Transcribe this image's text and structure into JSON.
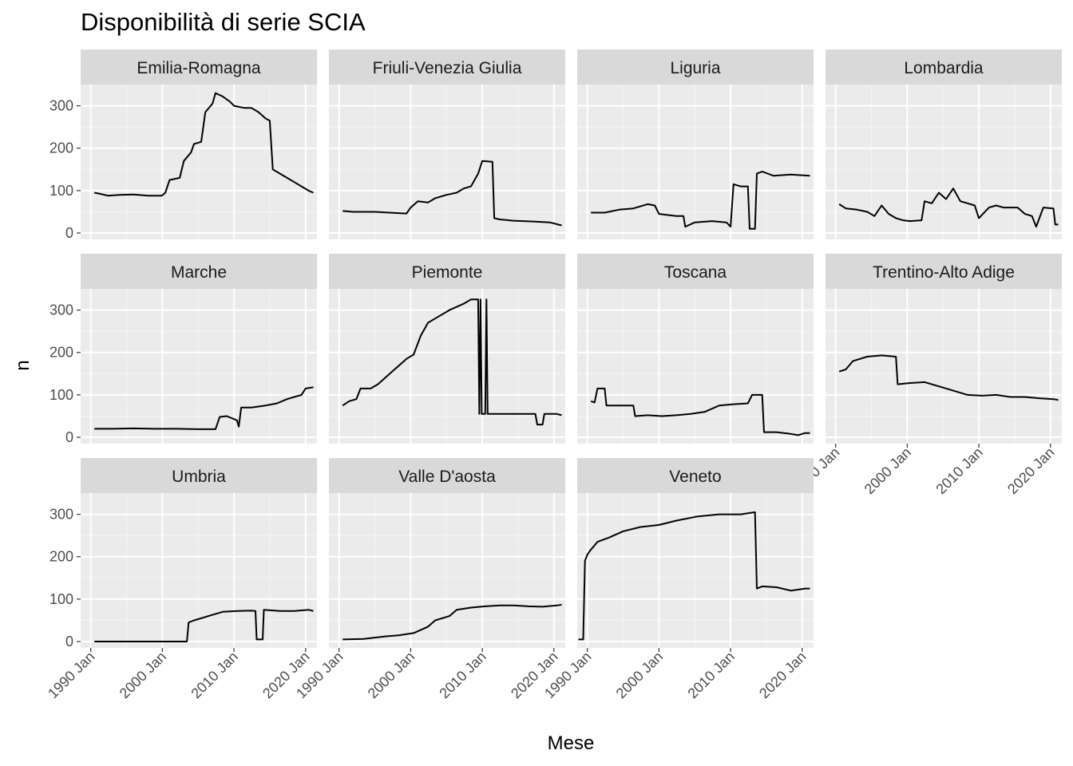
{
  "chart_data": {
    "type": "line",
    "title": "Disponibilità di serie SCIA",
    "xlabel": "Mese",
    "ylabel": "n",
    "facet_layout": "wrap, 4 columns",
    "x_ticks": [
      "1990 Jan",
      "2000 Jan",
      "2010 Jan",
      "2020 Jan"
    ],
    "y_ticks": [
      0,
      100,
      200,
      300
    ],
    "xlim": [
      "1988-08",
      "2021-08"
    ],
    "ylim": [
      -15,
      350
    ],
    "grid": true,
    "line_color": "#000000",
    "panel_background": "#EBEBEB",
    "strip_background": "#D9D9D9",
    "series": [
      {
        "name": "Emilia-Romagna",
        "points": [
          [
            "1990-07",
            95
          ],
          [
            "1991-06",
            92
          ],
          [
            "1992-06",
            88
          ],
          [
            "1994-01",
            90
          ],
          [
            "1996-01",
            91
          ],
          [
            "1998-01",
            88
          ],
          [
            "1999-12",
            88
          ],
          [
            "2000-06",
            95
          ],
          [
            "2001-01",
            125
          ],
          [
            "2002-06",
            130
          ],
          [
            "2003-01",
            170
          ],
          [
            "2004-01",
            190
          ],
          [
            "2004-06",
            210
          ],
          [
            "2005-06",
            215
          ],
          [
            "2006-01",
            285
          ],
          [
            "2007-01",
            305
          ],
          [
            "2007-06",
            330
          ],
          [
            "2008-06",
            322
          ],
          [
            "2009-06",
            310
          ],
          [
            "2010-01",
            300
          ],
          [
            "2011-06",
            295
          ],
          [
            "2012-06",
            295
          ],
          [
            "2013-06",
            285
          ],
          [
            "2014-06",
            270
          ],
          [
            "2015-01",
            265
          ],
          [
            "2015-06",
            150
          ],
          [
            "2016-06",
            140
          ],
          [
            "2017-06",
            130
          ],
          [
            "2018-06",
            120
          ],
          [
            "2019-06",
            110
          ],
          [
            "2020-06",
            100
          ],
          [
            "2021-02",
            95
          ]
        ]
      },
      {
        "name": "Friuli-Venezia Giulia",
        "points": [
          [
            "1990-07",
            52
          ],
          [
            "1992-01",
            50
          ],
          [
            "1995-01",
            50
          ],
          [
            "1997-01",
            48
          ],
          [
            "1999-06",
            46
          ],
          [
            "2000-01",
            60
          ],
          [
            "2001-01",
            75
          ],
          [
            "2002-06",
            72
          ],
          [
            "2003-06",
            82
          ],
          [
            "2005-01",
            90
          ],
          [
            "2006-06",
            95
          ],
          [
            "2007-06",
            105
          ],
          [
            "2008-06",
            110
          ],
          [
            "2009-06",
            140
          ],
          [
            "2010-01",
            170
          ],
          [
            "2011-06",
            168
          ],
          [
            "2011-09",
            35
          ],
          [
            "2012-06",
            32
          ],
          [
            "2014-06",
            29
          ],
          [
            "2017-06",
            27
          ],
          [
            "2019-06",
            25
          ],
          [
            "2021-02",
            18
          ]
        ]
      },
      {
        "name": "Liguria",
        "points": [
          [
            "1990-07",
            48
          ],
          [
            "1992-06",
            48
          ],
          [
            "1994-06",
            55
          ],
          [
            "1996-06",
            58
          ],
          [
            "1998-06",
            68
          ],
          [
            "1999-06",
            65
          ],
          [
            "2000-01",
            45
          ],
          [
            "2002-06",
            40
          ],
          [
            "2003-06",
            40
          ],
          [
            "2003-09",
            15
          ],
          [
            "2005-01",
            25
          ],
          [
            "2007-06",
            28
          ],
          [
            "2009-06",
            25
          ],
          [
            "2010-01",
            15
          ],
          [
            "2010-06",
            115
          ],
          [
            "2011-06",
            110
          ],
          [
            "2012-06",
            110
          ],
          [
            "2012-09",
            10
          ],
          [
            "2013-06",
            10
          ],
          [
            "2013-09",
            140
          ],
          [
            "2014-06",
            145
          ],
          [
            "2016-01",
            135
          ],
          [
            "2018-06",
            138
          ],
          [
            "2021-02",
            135
          ]
        ]
      },
      {
        "name": "Lombardia",
        "points": [
          [
            "1990-07",
            68
          ],
          [
            "1991-06",
            58
          ],
          [
            "1993-01",
            55
          ],
          [
            "1994-06",
            50
          ],
          [
            "1995-06",
            40
          ],
          [
            "1996-06",
            65
          ],
          [
            "1997-06",
            45
          ],
          [
            "1998-06",
            35
          ],
          [
            "1999-06",
            30
          ],
          [
            "2000-06",
            28
          ],
          [
            "2002-01",
            30
          ],
          [
            "2002-06",
            75
          ],
          [
            "2003-06",
            70
          ],
          [
            "2004-06",
            95
          ],
          [
            "2005-06",
            80
          ],
          [
            "2006-06",
            105
          ],
          [
            "2007-06",
            75
          ],
          [
            "2008-06",
            70
          ],
          [
            "2009-06",
            65
          ],
          [
            "2010-01",
            35
          ],
          [
            "2011-06",
            60
          ],
          [
            "2012-06",
            65
          ],
          [
            "2013-06",
            60
          ],
          [
            "2015-06",
            60
          ],
          [
            "2016-06",
            45
          ],
          [
            "2017-06",
            40
          ],
          [
            "2018-01",
            15
          ],
          [
            "2019-01",
            60
          ],
          [
            "2020-06",
            58
          ],
          [
            "2020-09",
            20
          ],
          [
            "2021-02",
            20
          ]
        ]
      },
      {
        "name": "Marche",
        "points": [
          [
            "1990-07",
            20
          ],
          [
            "1993-01",
            20
          ],
          [
            "1996-01",
            21
          ],
          [
            "1999-01",
            20
          ],
          [
            "2002-01",
            20
          ],
          [
            "2005-01",
            19
          ],
          [
            "2007-06",
            19
          ],
          [
            "2008-01",
            48
          ],
          [
            "2009-01",
            50
          ],
          [
            "2010-06",
            40
          ],
          [
            "2010-09",
            25
          ],
          [
            "2011-01",
            70
          ],
          [
            "2012-06",
            70
          ],
          [
            "2014-06",
            75
          ],
          [
            "2016-01",
            80
          ],
          [
            "2017-06",
            90
          ],
          [
            "2018-06",
            95
          ],
          [
            "2019-06",
            100
          ],
          [
            "2020-01",
            115
          ],
          [
            "2021-02",
            118
          ]
        ]
      },
      {
        "name": "Piemonte",
        "points": [
          [
            "1990-07",
            75
          ],
          [
            "1991-06",
            85
          ],
          [
            "1992-06",
            90
          ],
          [
            "1993-01",
            115
          ],
          [
            "1994-06",
            115
          ],
          [
            "1995-06",
            125
          ],
          [
            "1996-06",
            140
          ],
          [
            "1997-06",
            155
          ],
          [
            "1998-06",
            170
          ],
          [
            "1999-06",
            185
          ],
          [
            "2000-06",
            195
          ],
          [
            "2001-06",
            240
          ],
          [
            "2002-06",
            270
          ],
          [
            "2003-06",
            280
          ],
          [
            "2005-06",
            300
          ],
          [
            "2007-06",
            315
          ],
          [
            "2008-06",
            325
          ],
          [
            "2009-06",
            325
          ],
          [
            "2009-08",
            55
          ],
          [
            "2009-10",
            325
          ],
          [
            "2009-12",
            55
          ],
          [
            "2010-06",
            55
          ],
          [
            "2010-08",
            325
          ],
          [
            "2010-10",
            55
          ],
          [
            "2012-06",
            55
          ],
          [
            "2015-06",
            55
          ],
          [
            "2017-06",
            55
          ],
          [
            "2017-09",
            30
          ],
          [
            "2018-06",
            30
          ],
          [
            "2018-09",
            55
          ],
          [
            "2020-06",
            55
          ],
          [
            "2021-02",
            52
          ]
        ]
      },
      {
        "name": "Toscana",
        "points": [
          [
            "1990-07",
            85
          ],
          [
            "1991-01",
            82
          ],
          [
            "1991-06",
            115
          ],
          [
            "1992-06",
            115
          ],
          [
            "1992-09",
            75
          ],
          [
            "1994-06",
            75
          ],
          [
            "1996-06",
            75
          ],
          [
            "1996-09",
            50
          ],
          [
            "1998-06",
            52
          ],
          [
            "2000-06",
            50
          ],
          [
            "2002-06",
            52
          ],
          [
            "2004-06",
            55
          ],
          [
            "2006-06",
            60
          ],
          [
            "2008-06",
            75
          ],
          [
            "2010-06",
            78
          ],
          [
            "2012-06",
            80
          ],
          [
            "2013-01",
            100
          ],
          [
            "2014-06",
            100
          ],
          [
            "2014-09",
            12
          ],
          [
            "2016-06",
            12
          ],
          [
            "2018-06",
            8
          ],
          [
            "2019-06",
            5
          ],
          [
            "2020-06",
            10
          ],
          [
            "2021-02",
            10
          ]
        ]
      },
      {
        "name": "Trentino-Alto Adige",
        "points": [
          [
            "1990-07",
            155
          ],
          [
            "1991-06",
            160
          ],
          [
            "1992-06",
            180
          ],
          [
            "1994-06",
            190
          ],
          [
            "1996-06",
            193
          ],
          [
            "1998-06",
            190
          ],
          [
            "1998-09",
            125
          ],
          [
            "2000-06",
            128
          ],
          [
            "2002-06",
            130
          ],
          [
            "2004-06",
            120
          ],
          [
            "2006-06",
            110
          ],
          [
            "2008-06",
            100
          ],
          [
            "2010-06",
            98
          ],
          [
            "2012-06",
            100
          ],
          [
            "2014-06",
            95
          ],
          [
            "2016-06",
            95
          ],
          [
            "2018-06",
            92
          ],
          [
            "2020-06",
            90
          ],
          [
            "2021-02",
            88
          ]
        ]
      },
      {
        "name": "Umbria",
        "points": [
          [
            "1990-07",
            0
          ],
          [
            "1995-01",
            0
          ],
          [
            "2000-01",
            0
          ],
          [
            "2003-06",
            0
          ],
          [
            "2003-09",
            45
          ],
          [
            "2004-06",
            50
          ],
          [
            "2006-06",
            60
          ],
          [
            "2008-06",
            70
          ],
          [
            "2010-06",
            72
          ],
          [
            "2012-06",
            73
          ],
          [
            "2013-01",
            72
          ],
          [
            "2013-03",
            5
          ],
          [
            "2014-01",
            5
          ],
          [
            "2014-03",
            75
          ],
          [
            "2016-06",
            72
          ],
          [
            "2018-06",
            72
          ],
          [
            "2020-06",
            75
          ],
          [
            "2021-02",
            72
          ]
        ]
      },
      {
        "name": "Valle D'aosta",
        "points": [
          [
            "1990-07",
            5
          ],
          [
            "1993-06",
            6
          ],
          [
            "1996-06",
            12
          ],
          [
            "1998-06",
            15
          ],
          [
            "2000-06",
            20
          ],
          [
            "2002-06",
            35
          ],
          [
            "2003-06",
            50
          ],
          [
            "2005-06",
            60
          ],
          [
            "2006-06",
            75
          ],
          [
            "2008-06",
            80
          ],
          [
            "2010-06",
            83
          ],
          [
            "2012-06",
            85
          ],
          [
            "2014-06",
            85
          ],
          [
            "2016-06",
            83
          ],
          [
            "2018-06",
            82
          ],
          [
            "2020-06",
            85
          ],
          [
            "2021-02",
            87
          ]
        ]
      },
      {
        "name": "Veneto",
        "points": [
          [
            "1988-10",
            5
          ],
          [
            "1989-06",
            5
          ],
          [
            "1989-09",
            190
          ],
          [
            "1990-01",
            205
          ],
          [
            "1990-06",
            215
          ],
          [
            "1991-06",
            235
          ],
          [
            "1993-01",
            245
          ],
          [
            "1995-01",
            260
          ],
          [
            "1997-06",
            270
          ],
          [
            "2000-01",
            275
          ],
          [
            "2002-06",
            285
          ],
          [
            "2005-06",
            295
          ],
          [
            "2008-06",
            300
          ],
          [
            "2011-06",
            300
          ],
          [
            "2013-06",
            305
          ],
          [
            "2013-09",
            125
          ],
          [
            "2014-06",
            130
          ],
          [
            "2016-06",
            128
          ],
          [
            "2018-06",
            120
          ],
          [
            "2020-06",
            125
          ],
          [
            "2021-02",
            125
          ]
        ]
      }
    ]
  }
}
